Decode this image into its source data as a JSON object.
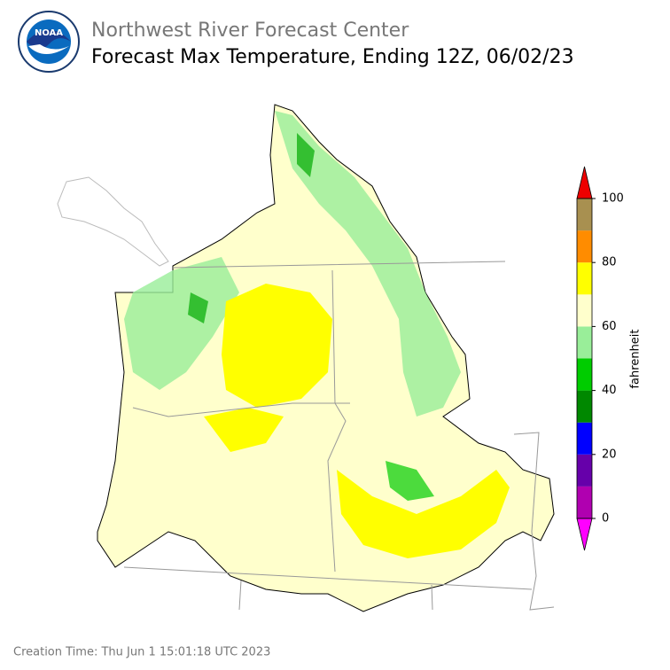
{
  "header": {
    "logo_text": "NOAA",
    "title": "Northwest River Forecast Center",
    "subtitle": "Forecast Max Temperature, Ending 12Z, 06/02/23"
  },
  "colorbar": {
    "label": "fahrenheit",
    "levels": [
      0,
      10,
      20,
      30,
      40,
      50,
      60,
      70,
      80,
      90,
      100
    ],
    "colors": [
      "#b000b0",
      "#6600aa",
      "#0000ff",
      "#008800",
      "#00cc00",
      "#99ee99",
      "#ffffcc",
      "#ffff00",
      "#ff8c00",
      "#a89050"
    ],
    "under_color": "#ff00ff",
    "over_color": "#ee0000",
    "ylim": [
      0,
      100
    ],
    "yticks": [
      0,
      20,
      40,
      60,
      80,
      100
    ]
  },
  "footer": {
    "creation_time": "Creation Time: Thu Jun 1 15:01:18 UTC 2023"
  }
}
